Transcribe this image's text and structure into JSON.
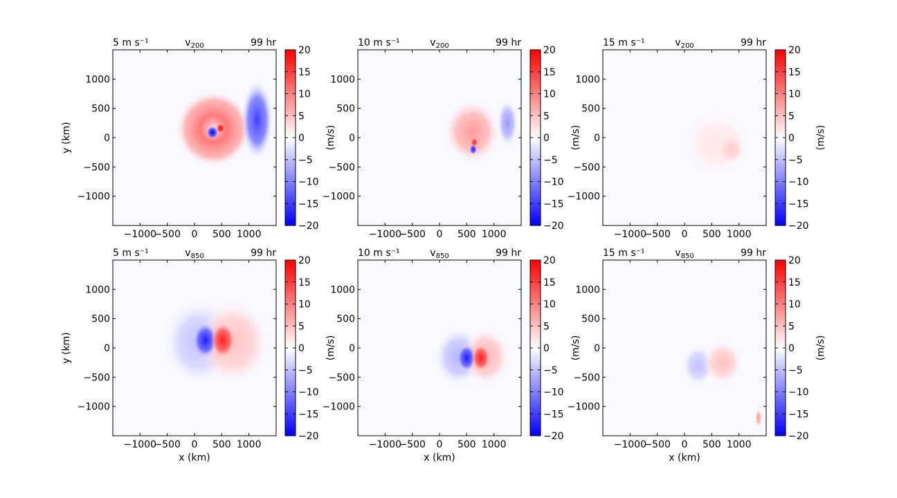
{
  "colorbar": {
    "ticks": [
      20,
      15,
      10,
      5,
      0,
      -5,
      -10,
      -15,
      -20
    ],
    "tick_labels": [
      "20",
      "15",
      "10",
      "5",
      "0",
      "−5",
      "−10",
      "−15",
      "−20"
    ],
    "unit_label": "(m/s)",
    "vmin": -20,
    "vmax": 20,
    "cmap_low": "#0000ff",
    "cmap_mid": "#ffffff",
    "cmap_high": "#ff0000"
  },
  "axes": {
    "xlabel": "x (km)",
    "ylabel": "y (km)",
    "x_ticks": [
      -1000,
      -500,
      0,
      500,
      1000
    ],
    "x_tick_labels": [
      "−1000",
      "−500",
      "0",
      "500",
      "1000"
    ],
    "y_ticks": [
      1000,
      500,
      0,
      -500,
      -1000
    ],
    "y_tick_labels": [
      "1000",
      "500",
      "0",
      "−500",
      "−1000"
    ],
    "xlim": [
      -1500,
      1500
    ],
    "ylim": [
      -1500,
      1500
    ]
  },
  "chart_data": [
    {
      "type": "heatmap",
      "row": 0,
      "col": 0,
      "title_left": "5 m s⁻¹",
      "title_center_base": "v",
      "title_center_sub": "200",
      "title_right": "99 hr",
      "features": [
        {
          "kind": "ring",
          "cx": 350,
          "cy": 150,
          "rx": 700,
          "ry": 650,
          "value": 10
        },
        {
          "kind": "blob",
          "cx": 1150,
          "cy": 300,
          "rx": 280,
          "ry": 650,
          "value": -15
        },
        {
          "kind": "blob",
          "cx": 330,
          "cy": 90,
          "rx": 110,
          "ry": 110,
          "value": -20
        },
        {
          "kind": "blob",
          "cx": 480,
          "cy": 160,
          "rx": 80,
          "ry": 90,
          "value": 20
        }
      ]
    },
    {
      "type": "heatmap",
      "row": 0,
      "col": 1,
      "title_left": "10 m s⁻¹",
      "title_center_base": "v",
      "title_center_sub": "200",
      "title_right": "99 hr",
      "features": [
        {
          "kind": "blob",
          "cx": 600,
          "cy": 100,
          "rx": 500,
          "ry": 520,
          "value": 8
        },
        {
          "kind": "blob",
          "cx": 1250,
          "cy": 250,
          "rx": 180,
          "ry": 380,
          "value": -8
        },
        {
          "kind": "blob",
          "cx": 620,
          "cy": -200,
          "rx": 70,
          "ry": 90,
          "value": -18
        },
        {
          "kind": "blob",
          "cx": 640,
          "cy": -80,
          "rx": 70,
          "ry": 80,
          "value": 18
        }
      ]
    },
    {
      "type": "heatmap",
      "row": 0,
      "col": 2,
      "title_left": "15 m s⁻¹",
      "title_center_base": "v",
      "title_center_sub": "200",
      "title_right": "99 hr",
      "features": [
        {
          "kind": "blob",
          "cx": 600,
          "cy": -100,
          "rx": 600,
          "ry": 550,
          "value": 2
        },
        {
          "kind": "blob",
          "cx": 850,
          "cy": -200,
          "rx": 250,
          "ry": 250,
          "value": 4
        }
      ]
    },
    {
      "type": "heatmap",
      "row": 1,
      "col": 0,
      "title_left": "5 m s⁻¹",
      "title_center_base": "v",
      "title_center_sub": "850",
      "title_right": "99 hr",
      "features": [
        {
          "kind": "blob",
          "cx": 100,
          "cy": 100,
          "rx": 650,
          "ry": 700,
          "value": -5
        },
        {
          "kind": "blob",
          "cx": 700,
          "cy": 100,
          "rx": 650,
          "ry": 700,
          "value": 5
        },
        {
          "kind": "blob",
          "cx": 200,
          "cy": 130,
          "rx": 220,
          "ry": 300,
          "value": -18
        },
        {
          "kind": "blob",
          "cx": 520,
          "cy": 130,
          "rx": 220,
          "ry": 300,
          "value": 18
        }
      ]
    },
    {
      "type": "heatmap",
      "row": 1,
      "col": 1,
      "title_left": "10 m s⁻¹",
      "title_center_base": "v",
      "title_center_sub": "850",
      "title_right": "99 hr",
      "features": [
        {
          "kind": "blob",
          "cx": 350,
          "cy": -150,
          "rx": 420,
          "ry": 480,
          "value": -6
        },
        {
          "kind": "blob",
          "cx": 850,
          "cy": -150,
          "rx": 420,
          "ry": 480,
          "value": 6
        },
        {
          "kind": "blob",
          "cx": 500,
          "cy": -170,
          "rx": 170,
          "ry": 230,
          "value": -18
        },
        {
          "kind": "blob",
          "cx": 760,
          "cy": -170,
          "rx": 170,
          "ry": 230,
          "value": 18
        }
      ]
    },
    {
      "type": "heatmap",
      "row": 1,
      "col": 2,
      "title_left": "15 m s⁻¹",
      "title_center_base": "v",
      "title_center_sub": "850",
      "title_right": "99 hr",
      "features": [
        {
          "kind": "blob",
          "cx": 250,
          "cy": -300,
          "rx": 280,
          "ry": 330,
          "value": -5
        },
        {
          "kind": "blob",
          "cx": 700,
          "cy": -250,
          "rx": 350,
          "ry": 360,
          "value": 5
        },
        {
          "kind": "blob",
          "cx": 1360,
          "cy": -1200,
          "rx": 60,
          "ry": 150,
          "value": 8
        }
      ]
    }
  ]
}
